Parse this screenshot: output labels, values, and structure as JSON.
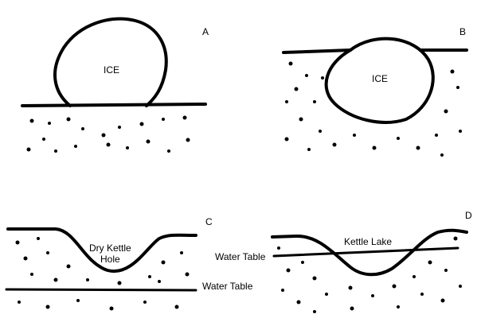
{
  "figure": {
    "description_labels": {
      "panel_a": {
        "letter": "A",
        "ice_label": "ICE"
      },
      "panel_b": {
        "letter": "B",
        "ice_label": "ICE"
      },
      "panel_c": {
        "letter": "C",
        "hole_label_line1": "Dry Kettle",
        "hole_label_line2": "Hole",
        "water_table_label": "Water Table"
      },
      "panel_d": {
        "letter": "D",
        "lake_label": "Kettle Lake",
        "water_table_label": "Water Table"
      }
    },
    "colors": {
      "ink": "#000000",
      "background": "#ffffff"
    }
  }
}
